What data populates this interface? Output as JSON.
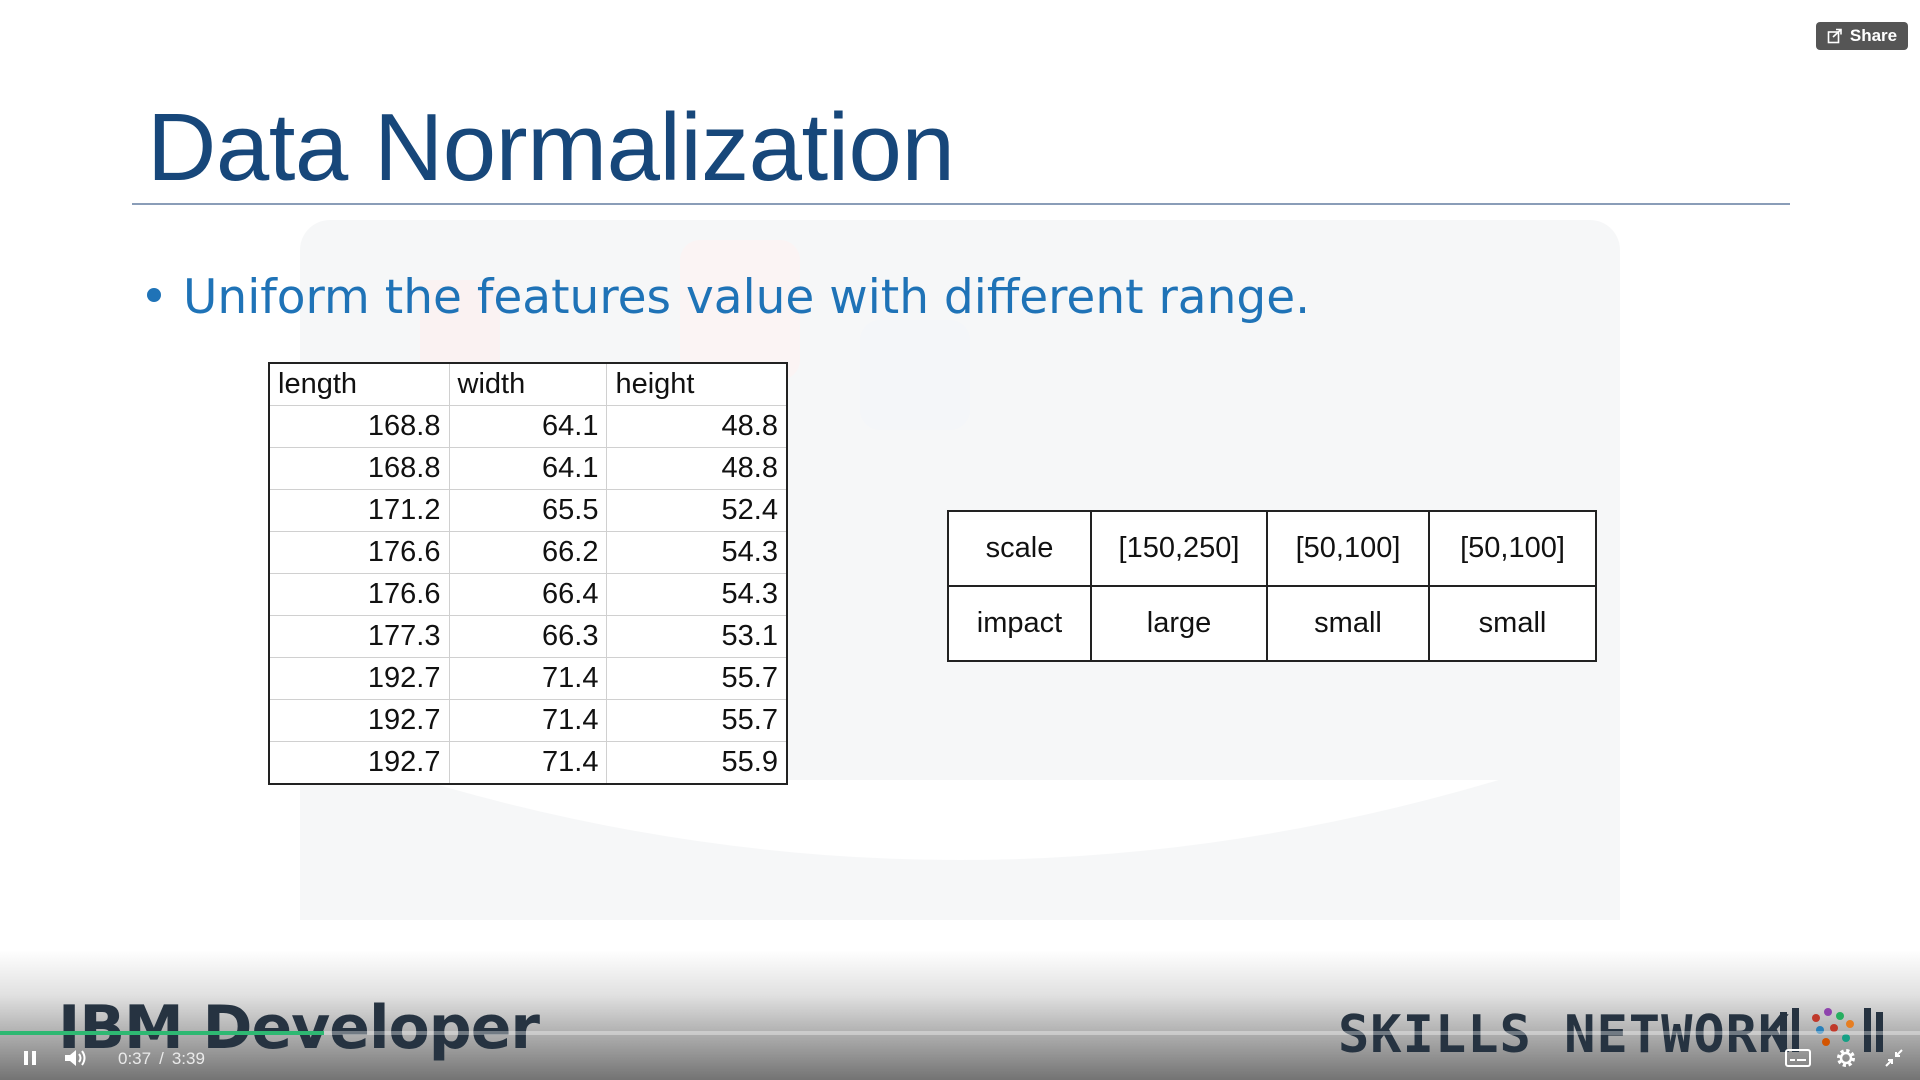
{
  "slide": {
    "title": "Data Normalization",
    "bullet": "Uniform the features value with different range."
  },
  "data_table": {
    "headers": [
      "length",
      "width",
      "height"
    ],
    "rows": [
      [
        "168.8",
        "64.1",
        "48.8"
      ],
      [
        "168.8",
        "64.1",
        "48.8"
      ],
      [
        "171.2",
        "65.5",
        "52.4"
      ],
      [
        "176.6",
        "66.2",
        "54.3"
      ],
      [
        "176.6",
        "66.4",
        "54.3"
      ],
      [
        "177.3",
        "66.3",
        "53.1"
      ],
      [
        "192.7",
        "71.4",
        "55.7"
      ],
      [
        "192.7",
        "71.4",
        "55.7"
      ],
      [
        "192.7",
        "71.4",
        "55.9"
      ]
    ]
  },
  "scale_table": {
    "rows": [
      [
        "scale",
        "[150,250]",
        "[50,100]",
        "[50,100]"
      ],
      [
        "impact",
        "large",
        "small",
        "small"
      ]
    ]
  },
  "player": {
    "share_label": "Share",
    "current_time": "0:37",
    "time_separator": "/",
    "duration": "3:39",
    "progress_fraction": 0.169,
    "accent_color": "#2eb872",
    "icons": [
      "share-icon",
      "pause-icon",
      "volume-icon",
      "captions-icon",
      "settings-icon",
      "exit-fullscreen-icon"
    ]
  },
  "branding": {
    "left": "IBM Developer",
    "right": "SKILLS NETWORK"
  }
}
